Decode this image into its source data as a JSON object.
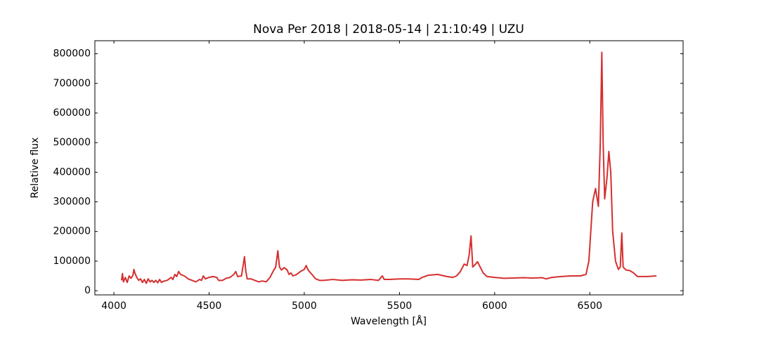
{
  "chart_data": {
    "type": "line",
    "title": "Nova Per 2018 | 2018-05-14 | 21:10:49 | UZU",
    "x_label": "Wavelength [Å]",
    "y_label": "Relative flux",
    "xlim": [
      3900,
      6990
    ],
    "ylim": [
      -14000,
      844000
    ],
    "xticks": [
      4000,
      4500,
      5000,
      5500,
      6000,
      6500
    ],
    "yticks": [
      0,
      100000,
      200000,
      300000,
      400000,
      500000,
      600000,
      700000,
      800000
    ],
    "grid": false,
    "x": [
      4040,
      4045,
      4050,
      4060,
      4070,
      4080,
      4090,
      4100,
      4105,
      4110,
      4120,
      4130,
      4140,
      4150,
      4160,
      4170,
      4180,
      4190,
      4200,
      4210,
      4220,
      4230,
      4240,
      4250,
      4260,
      4280,
      4300,
      4310,
      4320,
      4330,
      4340,
      4350,
      4370,
      4390,
      4410,
      4430,
      4450,
      4460,
      4470,
      4480,
      4500,
      4520,
      4540,
      4550,
      4570,
      4590,
      4610,
      4630,
      4640,
      4650,
      4670,
      4680,
      4686,
      4692,
      4700,
      4720,
      4740,
      4760,
      4780,
      4800,
      4820,
      4840,
      4850,
      4861,
      4870,
      4880,
      4895,
      4910,
      4920,
      4930,
      4940,
      4960,
      4980,
      5000,
      5010,
      5020,
      5040,
      5060,
      5080,
      5100,
      5150,
      5200,
      5250,
      5300,
      5350,
      5390,
      5410,
      5420,
      5450,
      5500,
      5550,
      5600,
      5620,
      5650,
      5700,
      5750,
      5780,
      5800,
      5820,
      5840,
      5855,
      5866,
      5876,
      5885,
      5900,
      5910,
      5920,
      5940,
      5960,
      6000,
      6050,
      6100,
      6150,
      6200,
      6250,
      6270,
      6300,
      6350,
      6400,
      6450,
      6480,
      6495,
      6505,
      6515,
      6530,
      6545,
      6555,
      6563,
      6570,
      6578,
      6590,
      6600,
      6610,
      6620,
      6635,
      6650,
      6660,
      6668,
      6675,
      6690,
      6710,
      6730,
      6750,
      6800,
      6850
    ],
    "series": [
      {
        "color": "#d62f2f",
        "values": [
          35000,
          58000,
          30000,
          45000,
          28000,
          50000,
          42000,
          52000,
          72000,
          60000,
          45000,
          35000,
          40000,
          28000,
          38000,
          25000,
          40000,
          30000,
          35000,
          28000,
          35000,
          27000,
          38000,
          28000,
          32000,
          35000,
          45000,
          38000,
          55000,
          48000,
          65000,
          55000,
          50000,
          40000,
          35000,
          30000,
          38000,
          35000,
          50000,
          40000,
          45000,
          48000,
          45000,
          35000,
          35000,
          42000,
          45000,
          55000,
          65000,
          48000,
          50000,
          90000,
          115000,
          70000,
          40000,
          40000,
          35000,
          30000,
          33000,
          30000,
          45000,
          70000,
          80000,
          135000,
          80000,
          70000,
          78000,
          70000,
          55000,
          60000,
          50000,
          55000,
          65000,
          72000,
          85000,
          70000,
          55000,
          40000,
          35000,
          35000,
          38000,
          35000,
          37000,
          36000,
          38000,
          35000,
          50000,
          38000,
          38000,
          40000,
          40000,
          38000,
          45000,
          52000,
          55000,
          48000,
          45000,
          50000,
          65000,
          90000,
          85000,
          120000,
          185000,
          80000,
          90000,
          98000,
          85000,
          60000,
          48000,
          45000,
          42000,
          43000,
          44000,
          43000,
          44000,
          40000,
          45000,
          48000,
          50000,
          50000,
          55000,
          100000,
          200000,
          300000,
          345000,
          285000,
          500000,
          805000,
          500000,
          310000,
          380000,
          470000,
          400000,
          200000,
          100000,
          72000,
          80000,
          195000,
          80000,
          70000,
          68000,
          60000,
          48000,
          48000,
          50000
        ]
      }
    ]
  }
}
